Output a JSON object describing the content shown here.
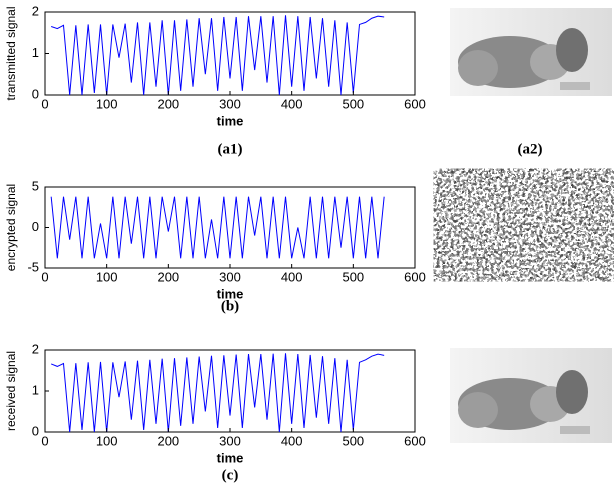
{
  "chart_data": [
    {
      "type": "line",
      "ylabel": "transmitted signal",
      "xlabel": "time",
      "color": "#0000ff",
      "xlim": [
        0,
        600
      ],
      "xticks": [
        0,
        100,
        200,
        300,
        400,
        500,
        600
      ],
      "ylim": [
        0,
        2
      ],
      "yticks": [
        0,
        1,
        2
      ],
      "x": [
        10,
        20,
        30,
        40,
        50,
        60,
        70,
        80,
        90,
        100,
        110,
        120,
        130,
        140,
        150,
        160,
        170,
        180,
        190,
        200,
        210,
        220,
        230,
        240,
        250,
        260,
        270,
        280,
        290,
        300,
        310,
        320,
        330,
        340,
        350,
        360,
        370,
        380,
        390,
        400,
        410,
        420,
        430,
        440,
        450,
        460,
        470,
        480,
        490,
        500,
        510,
        520,
        530,
        540,
        550
      ],
      "values": [
        1.65,
        1.6,
        1.68,
        0,
        1.68,
        0,
        1.7,
        0.05,
        1.7,
        0,
        1.7,
        0.9,
        1.72,
        0.3,
        1.75,
        0,
        1.75,
        0.2,
        1.8,
        0,
        1.8,
        0.1,
        1.82,
        0.2,
        1.85,
        0.5,
        1.85,
        0.1,
        1.88,
        0.4,
        1.88,
        0.1,
        1.9,
        0.6,
        1.9,
        0.3,
        1.9,
        0,
        1.92,
        0.2,
        1.9,
        0.1,
        1.88,
        0.4,
        1.85,
        0.2,
        1.8,
        0,
        1.75,
        0.05,
        1.7,
        1.75,
        1.85,
        1.9,
        1.88
      ]
    },
    {
      "type": "line",
      "ylabel": "encrypted signal",
      "xlabel": "time",
      "color": "#0000ff",
      "xlim": [
        0,
        600
      ],
      "xticks": [
        0,
        100,
        200,
        300,
        400,
        500,
        600
      ],
      "ylim": [
        -5,
        5
      ],
      "yticks": [
        -5,
        0,
        5
      ],
      "x": [
        10,
        20,
        30,
        40,
        50,
        60,
        70,
        80,
        90,
        100,
        110,
        120,
        130,
        140,
        150,
        160,
        170,
        180,
        190,
        200,
        210,
        220,
        230,
        240,
        250,
        260,
        270,
        280,
        290,
        300,
        310,
        320,
        330,
        340,
        350,
        360,
        370,
        380,
        390,
        400,
        410,
        420,
        430,
        440,
        450,
        460,
        470,
        480,
        490,
        500,
        510,
        520,
        530,
        540,
        550
      ],
      "values": [
        3.8,
        -3.8,
        3.8,
        -1.5,
        3.8,
        -3.8,
        3.8,
        -3.8,
        0.5,
        -3.8,
        3.8,
        -3.8,
        3.8,
        -2,
        3.8,
        -3.8,
        3.8,
        -3.8,
        3.8,
        -0.5,
        3.8,
        -3.8,
        3.8,
        -3.8,
        3.8,
        -3.8,
        1,
        -3.8,
        3.8,
        -3.8,
        3.8,
        -3.8,
        3.8,
        -1,
        3.8,
        -3.8,
        3.8,
        -3.8,
        3.8,
        -3.8,
        0,
        -3.8,
        3.8,
        -3.8,
        3.8,
        -3.8,
        3.8,
        -2.5,
        3.8,
        -3.8,
        3.8,
        -3.8,
        3.8,
        -3.8,
        3.8
      ]
    },
    {
      "type": "line",
      "ylabel": "received signal",
      "xlabel": "time",
      "color": "#0000ff",
      "xlim": [
        0,
        600
      ],
      "xticks": [
        0,
        100,
        200,
        300,
        400,
        500,
        600
      ],
      "ylim": [
        0,
        2
      ],
      "yticks": [
        0,
        1,
        2
      ],
      "x": [
        10,
        20,
        30,
        40,
        50,
        60,
        70,
        80,
        90,
        100,
        110,
        120,
        130,
        140,
        150,
        160,
        170,
        180,
        190,
        200,
        210,
        220,
        230,
        240,
        250,
        260,
        270,
        280,
        290,
        300,
        310,
        320,
        330,
        340,
        350,
        360,
        370,
        380,
        390,
        400,
        410,
        420,
        430,
        440,
        450,
        460,
        470,
        480,
        490,
        500,
        510,
        520,
        530,
        540,
        550
      ],
      "values": [
        1.66,
        1.6,
        1.67,
        0,
        1.68,
        0.05,
        1.7,
        0,
        1.71,
        0,
        1.7,
        0.85,
        1.72,
        0.3,
        1.74,
        0.05,
        1.76,
        0.2,
        1.79,
        0,
        1.8,
        0.15,
        1.82,
        0.2,
        1.84,
        0.5,
        1.86,
        0.1,
        1.87,
        0.4,
        1.89,
        0.1,
        1.9,
        0.6,
        1.9,
        0.3,
        1.91,
        0,
        1.92,
        0.2,
        1.9,
        0.1,
        1.88,
        0.35,
        1.85,
        0.2,
        1.8,
        0,
        1.76,
        0.05,
        1.7,
        1.76,
        1.85,
        1.9,
        1.87
      ]
    }
  ],
  "captions": [
    "(a1)",
    "(a2)",
    "(b)",
    "(c)"
  ]
}
